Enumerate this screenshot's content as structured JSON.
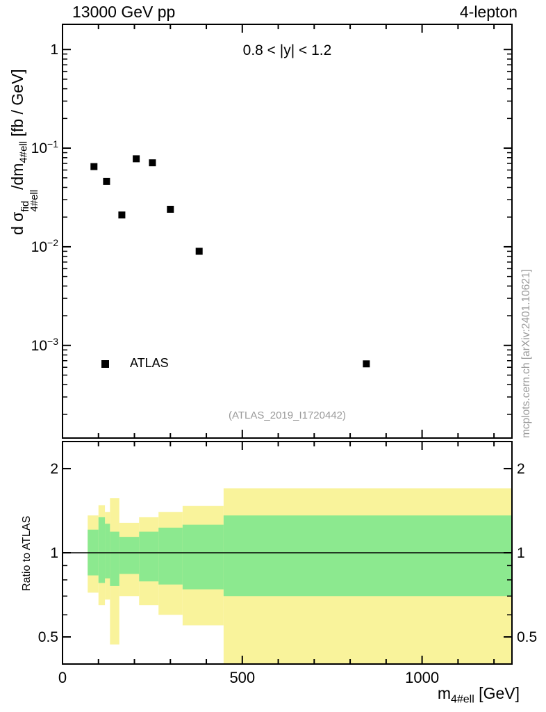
{
  "chart_data": {
    "type": "scatter",
    "title_left": "13000 GeV pp",
    "title_right": "4-lepton",
    "annotation": "0.8 < |y| < 1.2",
    "legend": "ATLAS",
    "reference": "(ATLAS_2019_I1720442)",
    "watermark": "mcplots.cern.ch [arXiv:2401.10621]",
    "xlabel": {
      "base": "m",
      "sub": "4#ell",
      "unit": " [GeV]"
    },
    "ylabel": {
      "d": "d ",
      "sigma": "σ",
      "sup": "fid",
      "sub": "4#ell",
      "over": "/dm",
      "sub2": "4#ell",
      "unit": " [fb / GeV]"
    },
    "ratio_ylabel": "Ratio to ATLAS",
    "x_range": [
      0,
      1250
    ],
    "y_range": [
      0.000115,
      1.8
    ],
    "y_scale": "log",
    "ratio_range": [
      0.4,
      2.5
    ],
    "ratio_scale": "log",
    "x_ticks_major": [
      0,
      500,
      1000
    ],
    "x_tick_labels": [
      "0",
      "500",
      "1000"
    ],
    "x_minor_step": 100,
    "y_ticks": [
      {
        "value": 1,
        "label": "1",
        "exp": ""
      },
      {
        "value": 0.1,
        "label": "10",
        "exp": "−1"
      },
      {
        "value": 0.01,
        "label": "10",
        "exp": "−2"
      },
      {
        "value": 0.001,
        "label": "10",
        "exp": "−3"
      }
    ],
    "ratio_ticks": [
      {
        "value": 2,
        "label": "2"
      },
      {
        "value": 1,
        "label": "1"
      },
      {
        "value": 0.5,
        "label": "0.5"
      }
    ],
    "ratio_minor_ticks": [
      0.6,
      0.7,
      0.8,
      0.9
    ],
    "ratio_reference_line": 1,
    "points": [
      {
        "x": 87.5,
        "y": 0.065
      },
      {
        "x": 122.5,
        "y": 0.046
      },
      {
        "x": 165,
        "y": 0.021
      },
      {
        "x": 205,
        "y": 0.078
      },
      {
        "x": 250,
        "y": 0.071
      },
      {
        "x": 300,
        "y": 0.024
      },
      {
        "x": 380,
        "y": 0.009
      },
      {
        "x": 845,
        "y": 0.00065
      }
    ],
    "ratio_bands": [
      {
        "x1": 70,
        "x2": 100,
        "yellow": [
          0.72,
          1.36
        ],
        "green": [
          0.83,
          1.21
        ]
      },
      {
        "x1": 100,
        "x2": 118,
        "yellow": [
          0.65,
          1.48
        ],
        "green": [
          0.78,
          1.34
        ]
      },
      {
        "x1": 118,
        "x2": 132,
        "yellow": [
          0.68,
          1.4
        ],
        "green": [
          0.81,
          1.27
        ]
      },
      {
        "x1": 132,
        "x2": 158,
        "yellow": [
          0.47,
          1.57
        ],
        "green": [
          0.76,
          1.19
        ]
      },
      {
        "x1": 158,
        "x2": 213,
        "yellow": [
          0.7,
          1.28
        ],
        "green": [
          0.84,
          1.14
        ]
      },
      {
        "x1": 213,
        "x2": 267,
        "yellow": [
          0.65,
          1.34
        ],
        "green": [
          0.79,
          1.19
        ]
      },
      {
        "x1": 267,
        "x2": 334,
        "yellow": [
          0.6,
          1.4
        ],
        "green": [
          0.77,
          1.23
        ]
      },
      {
        "x1": 334,
        "x2": 448,
        "yellow": [
          0.55,
          1.47
        ],
        "green": [
          0.74,
          1.26
        ]
      },
      {
        "x1": 448,
        "x2": 1250,
        "yellow": [
          0.4,
          1.7
        ],
        "green": [
          0.7,
          1.36
        ]
      }
    ],
    "colors": {
      "band_yellow": "#f9f39b",
      "band_green": "#8ce98f",
      "marker": "#000000",
      "gray_text": "#9a9a9a"
    }
  }
}
